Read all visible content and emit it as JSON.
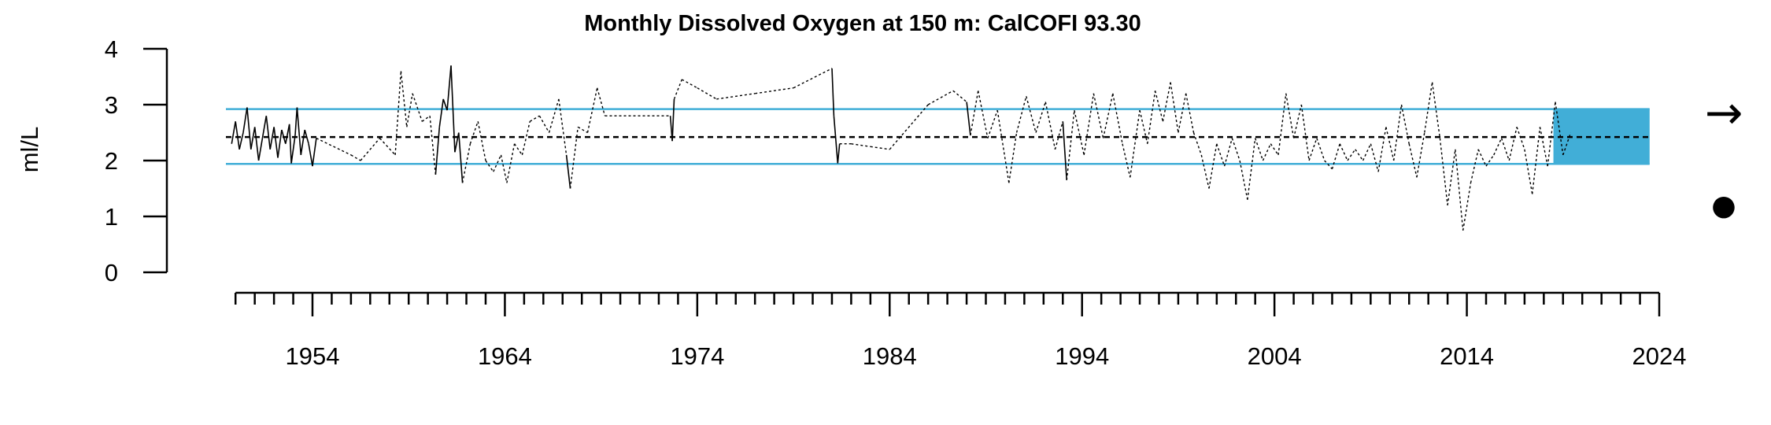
{
  "chart_data": {
    "type": "line",
    "title": "Monthly Dissolved Oxygen at 150 m: CalCOFI 93.30",
    "ylabel": "ml/L",
    "xlabel": "",
    "ylim": [
      0,
      4
    ],
    "xlim": [
      1949.5,
      2024
    ],
    "y_ticks": [
      0,
      1,
      2,
      3,
      4
    ],
    "x_ticks": [
      1954,
      1964,
      1974,
      1984,
      1994,
      2004,
      2014,
      2024
    ],
    "reference_lines": {
      "mean": 2.42,
      "upper_sd": 2.92,
      "lower_sd": 1.94
    },
    "recent_period": {
      "start": 2018.5,
      "end": 2023.5
    },
    "trend_indicator": {
      "symbol": "→"
    },
    "recent_mean_indicator": {
      "symbol": "●"
    },
    "colors": {
      "sd_lines": "#41aed7",
      "recent_shade": "#41aed7",
      "series": "#000000"
    },
    "series": [
      {
        "values": [
          [
            1949.8,
            2.3
          ],
          [
            1950.0,
            2.7
          ],
          [
            1950.2,
            2.2
          ],
          [
            1950.4,
            2.5
          ],
          [
            1950.6,
            2.95
          ],
          [
            1950.8,
            2.2
          ],
          [
            1951.0,
            2.6
          ],
          [
            1951.2,
            2.0
          ],
          [
            1951.4,
            2.4
          ],
          [
            1951.6,
            2.8
          ],
          [
            1951.8,
            2.2
          ],
          [
            1952.0,
            2.6
          ],
          [
            1952.2,
            2.05
          ],
          [
            1952.4,
            2.55
          ],
          [
            1952.6,
            2.3
          ],
          [
            1952.8,
            2.65
          ],
          [
            1952.9,
            1.95
          ],
          [
            1953.1,
            2.45
          ],
          [
            1953.2,
            2.95
          ],
          [
            1953.4,
            2.1
          ],
          [
            1953.6,
            2.55
          ],
          [
            1953.8,
            2.3
          ],
          [
            1954.0,
            1.9
          ],
          [
            1954.2,
            2.4
          ],
          [
            1956.0,
            2.1
          ],
          [
            1956.5,
            2.0
          ],
          [
            1957.5,
            2.4
          ],
          [
            1958.3,
            2.1
          ],
          [
            1958.6,
            3.6
          ],
          [
            1958.9,
            2.6
          ],
          [
            1959.2,
            3.2
          ],
          [
            1959.7,
            2.7
          ],
          [
            1960.1,
            2.8
          ],
          [
            1960.4,
            1.75
          ],
          [
            1960.6,
            2.6
          ],
          [
            1960.8,
            3.1
          ],
          [
            1961.0,
            2.9
          ],
          [
            1961.2,
            3.7
          ],
          [
            1961.4,
            2.15
          ],
          [
            1961.6,
            2.5
          ],
          [
            1961.8,
            1.6
          ],
          [
            1962.2,
            2.3
          ],
          [
            1962.6,
            2.7
          ],
          [
            1963.0,
            2.0
          ],
          [
            1963.4,
            1.8
          ],
          [
            1963.8,
            2.1
          ],
          [
            1964.1,
            1.6
          ],
          [
            1964.5,
            2.3
          ],
          [
            1964.9,
            2.1
          ],
          [
            1965.3,
            2.7
          ],
          [
            1965.8,
            2.8
          ],
          [
            1966.3,
            2.5
          ],
          [
            1966.8,
            3.1
          ],
          [
            1967.2,
            2.1
          ],
          [
            1967.4,
            1.5
          ],
          [
            1967.8,
            2.6
          ],
          [
            1968.3,
            2.5
          ],
          [
            1968.8,
            3.3
          ],
          [
            1969.2,
            2.8
          ],
          [
            1972.6,
            2.8
          ],
          [
            1972.7,
            2.35
          ],
          [
            1972.8,
            3.1
          ],
          [
            1973.2,
            3.45
          ],
          [
            1974.0,
            3.3
          ],
          [
            1975.0,
            3.1
          ],
          [
            1977.0,
            3.2
          ],
          [
            1979.0,
            3.3
          ],
          [
            1981.0,
            3.65
          ],
          [
            1981.1,
            2.8
          ],
          [
            1981.3,
            1.95
          ],
          [
            1981.4,
            2.3
          ],
          [
            1982.0,
            2.3
          ],
          [
            1983.0,
            2.25
          ],
          [
            1984.0,
            2.2
          ],
          [
            1986.0,
            3.0
          ],
          [
            1987.3,
            3.25
          ],
          [
            1988.0,
            3.05
          ],
          [
            1988.2,
            2.45
          ],
          [
            1988.6,
            3.25
          ],
          [
            1989.1,
            2.4
          ],
          [
            1989.6,
            2.9
          ],
          [
            1990.2,
            1.6
          ],
          [
            1990.6,
            2.5
          ],
          [
            1991.1,
            3.15
          ],
          [
            1991.6,
            2.5
          ],
          [
            1992.1,
            3.05
          ],
          [
            1992.6,
            2.2
          ],
          [
            1993.0,
            2.7
          ],
          [
            1993.2,
            1.65
          ],
          [
            1993.6,
            2.9
          ],
          [
            1994.1,
            2.1
          ],
          [
            1994.6,
            3.2
          ],
          [
            1995.1,
            2.4
          ],
          [
            1995.6,
            3.2
          ],
          [
            1996.1,
            2.3
          ],
          [
            1996.5,
            1.7
          ],
          [
            1997.0,
            2.9
          ],
          [
            1997.4,
            2.3
          ],
          [
            1997.8,
            3.25
          ],
          [
            1998.2,
            2.7
          ],
          [
            1998.6,
            3.4
          ],
          [
            1999.0,
            2.5
          ],
          [
            1999.4,
            3.2
          ],
          [
            1999.8,
            2.5
          ],
          [
            2000.2,
            2.1
          ],
          [
            2000.6,
            1.5
          ],
          [
            2001.0,
            2.3
          ],
          [
            2001.4,
            1.9
          ],
          [
            2001.8,
            2.4
          ],
          [
            2002.2,
            2.0
          ],
          [
            2002.6,
            1.3
          ],
          [
            2003.0,
            2.4
          ],
          [
            2003.4,
            2.0
          ],
          [
            2003.8,
            2.3
          ],
          [
            2004.2,
            2.1
          ],
          [
            2004.6,
            3.2
          ],
          [
            2005.0,
            2.4
          ],
          [
            2005.4,
            3.0
          ],
          [
            2005.8,
            2.0
          ],
          [
            2006.2,
            2.4
          ],
          [
            2006.6,
            2.0
          ],
          [
            2007.0,
            1.85
          ],
          [
            2007.4,
            2.3
          ],
          [
            2007.8,
            2.0
          ],
          [
            2008.2,
            2.2
          ],
          [
            2008.6,
            2.0
          ],
          [
            2009.0,
            2.3
          ],
          [
            2009.4,
            1.8
          ],
          [
            2009.8,
            2.6
          ],
          [
            2010.2,
            2.0
          ],
          [
            2010.6,
            3.0
          ],
          [
            2011.0,
            2.3
          ],
          [
            2011.4,
            1.7
          ],
          [
            2011.8,
            2.5
          ],
          [
            2012.2,
            3.4
          ],
          [
            2012.6,
            2.4
          ],
          [
            2013.0,
            1.2
          ],
          [
            2013.4,
            2.2
          ],
          [
            2013.8,
            0.75
          ],
          [
            2014.2,
            1.6
          ],
          [
            2014.6,
            2.2
          ],
          [
            2015.0,
            1.9
          ],
          [
            2015.4,
            2.1
          ],
          [
            2015.8,
            2.4
          ],
          [
            2016.2,
            2.0
          ],
          [
            2016.6,
            2.6
          ],
          [
            2017.0,
            2.2
          ],
          [
            2017.4,
            1.4
          ],
          [
            2017.8,
            2.6
          ],
          [
            2018.2,
            1.9
          ],
          [
            2018.6,
            3.05
          ],
          [
            2019.0,
            2.1
          ],
          [
            2019.4,
            2.5
          ]
        ]
      }
    ]
  }
}
